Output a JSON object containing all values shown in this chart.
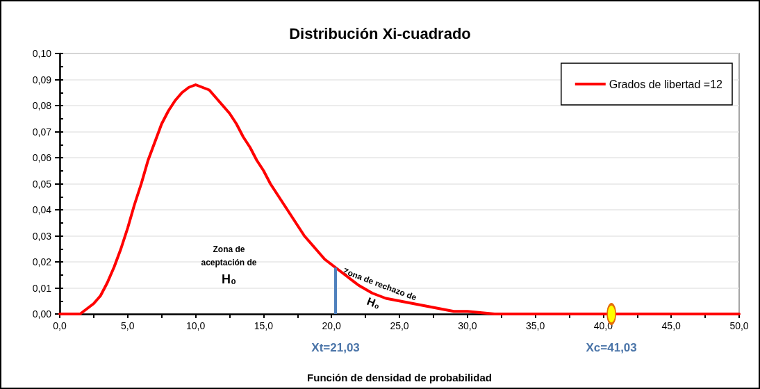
{
  "chart_data": {
    "type": "line",
    "title": "Distribución Xi-cuadrado",
    "xlabel": "Función de densidad de probabilidad",
    "x": [
      0,
      0.5,
      1,
      1.5,
      2,
      2.5,
      3,
      3.5,
      4,
      4.5,
      5,
      5.5,
      6,
      6.5,
      7,
      7.5,
      8,
      8.5,
      9,
      9.5,
      10,
      10.5,
      11,
      11.5,
      12,
      12.5,
      13,
      13.5,
      14,
      14.5,
      15,
      15.5,
      16,
      16.5,
      17,
      17.5,
      18,
      18.5,
      19,
      19.5,
      20,
      21,
      22,
      23,
      24,
      25,
      26,
      27,
      28,
      29,
      30,
      32,
      34,
      36,
      38,
      40,
      45,
      50
    ],
    "series": [
      {
        "name": "Grados de libertad =12",
        "color": "#ff0000",
        "values": [
          0,
          0,
          0,
          0,
          0.002,
          0.004,
          0.007,
          0.012,
          0.018,
          0.025,
          0.033,
          0.042,
          0.05,
          0.059,
          0.066,
          0.073,
          0.078,
          0.082,
          0.085,
          0.087,
          0.088,
          0.087,
          0.086,
          0.083,
          0.08,
          0.077,
          0.073,
          0.068,
          0.064,
          0.059,
          0.055,
          0.05,
          0.046,
          0.042,
          0.038,
          0.034,
          0.03,
          0.027,
          0.024,
          0.021,
          0.019,
          0.015,
          0.011,
          0.008,
          0.006,
          0.005,
          0.004,
          0.003,
          0.002,
          0.001,
          0.001,
          0,
          0,
          0,
          0,
          0,
          0,
          0
        ]
      },
      {
        "type": "scatter",
        "color": "#ffff00",
        "marker": "circle",
        "x": [
          40.6
        ],
        "values": [
          0
        ]
      }
    ],
    "xlim": [
      0,
      50
    ],
    "xticks": [
      {
        "value": 0,
        "label": "0,0"
      },
      {
        "value": 2.5,
        "label": null
      },
      {
        "value": 5,
        "label": "5,0"
      },
      {
        "value": 7.5,
        "label": null
      },
      {
        "value": 10,
        "label": "10,0"
      },
      {
        "value": 12.5,
        "label": null
      },
      {
        "value": 15,
        "label": "15,0"
      },
      {
        "value": 17.5,
        "label": null
      },
      {
        "value": 20,
        "label": "20,0"
      },
      {
        "value": 22.5,
        "label": null
      },
      {
        "value": 25,
        "label": "25,0"
      },
      {
        "value": 27.5,
        "label": null
      },
      {
        "value": 30,
        "label": "30,0"
      },
      {
        "value": 32.5,
        "label": null
      },
      {
        "value": 35,
        "label": "35,0"
      },
      {
        "value": 37.5,
        "label": null
      },
      {
        "value": 40,
        "label": "40,0"
      },
      {
        "value": 42.5,
        "label": null
      },
      {
        "value": 45,
        "label": "45,0"
      },
      {
        "value": 47.5,
        "label": null
      },
      {
        "value": 50,
        "label": "50,0"
      }
    ],
    "ylim": [
      0,
      0.1
    ],
    "yticks": [
      {
        "value": 0,
        "label": "0,00"
      },
      {
        "value": 0.005,
        "label": null
      },
      {
        "value": 0.01,
        "label": "0,01"
      },
      {
        "value": 0.015,
        "label": null
      },
      {
        "value": 0.02,
        "label": "0,02"
      },
      {
        "value": 0.025,
        "label": null
      },
      {
        "value": 0.03,
        "label": "0,03"
      },
      {
        "value": 0.035,
        "label": null
      },
      {
        "value": 0.04,
        "label": "0,04"
      },
      {
        "value": 0.045,
        "label": null
      },
      {
        "value": 0.05,
        "label": "0,05"
      },
      {
        "value": 0.055,
        "label": null
      },
      {
        "value": 0.06,
        "label": "0,06"
      },
      {
        "value": 0.065,
        "label": null
      },
      {
        "value": 0.07,
        "label": "0,07"
      },
      {
        "value": 0.075,
        "label": null
      },
      {
        "value": 0.08,
        "label": "0,08"
      },
      {
        "value": 0.085,
        "label": null
      },
      {
        "value": 0.09,
        "label": "0,09"
      },
      {
        "value": 0.095,
        "label": null
      },
      {
        "value": 0.1,
        "label": "0,10"
      }
    ],
    "grid": "y",
    "legend": "top right",
    "ref_lines": [
      {
        "axis": "x",
        "value": 20.3,
        "color": "#4f81bd"
      }
    ],
    "annotations": [
      "Zona de aceptación de H₀",
      "Zona de rechazo de H₀",
      {
        "text": "Xt=21,03",
        "x": 20.3,
        "y": 0
      },
      {
        "text": "Xc=41,03",
        "x": 40.6,
        "y": 0
      }
    ]
  }
}
